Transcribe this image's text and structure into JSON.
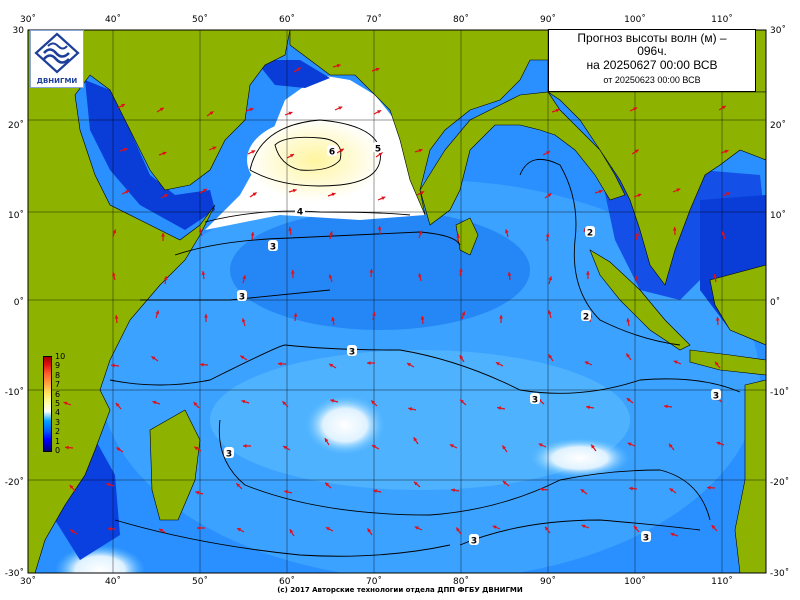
{
  "title": {
    "line1": "Прогноз высоты волн (м) –",
    "line2": "096ч.",
    "line3": "на 20250627 00:00 ВСВ",
    "line4": "от 20250623 00:00 ВСВ"
  },
  "logo": {
    "text": "ДВНИГМИ",
    "icon": "wave-logo-icon"
  },
  "colorbar": {
    "labels": [
      "10",
      "9",
      "8",
      "7",
      "6",
      "5",
      "4",
      "3",
      "2",
      "1",
      "0"
    ]
  },
  "axes": {
    "x_ticks": [
      "30˚",
      "40˚",
      "50˚",
      "60˚",
      "70˚",
      "80˚",
      "90˚",
      "100˚",
      "110˚"
    ],
    "y_ticks_left": [
      "30",
      "20˚",
      "10˚",
      "0˚",
      "-10˚",
      "-20˚",
      "-30˚"
    ],
    "y_ticks_right": [
      "30˚",
      "20˚",
      "10˚",
      "0˚",
      "-10˚",
      "-20˚",
      "-30˚"
    ]
  },
  "contour_labels": [
    "6",
    "5",
    "4",
    "3",
    "3",
    "2",
    "3",
    "3",
    "3",
    "3",
    "3",
    "3",
    "2"
  ],
  "footer": "(с) 2017 Авторские технологии отдела ДПП ФГБУ ДВНИГМИ",
  "colors": {
    "land": "#8db300",
    "ocean_deep": "#0a50f0",
    "ocean_light": "#38a8ff",
    "high_wave": "#fff5a8",
    "arrow": "#e0101a",
    "grid": "#000000"
  }
}
